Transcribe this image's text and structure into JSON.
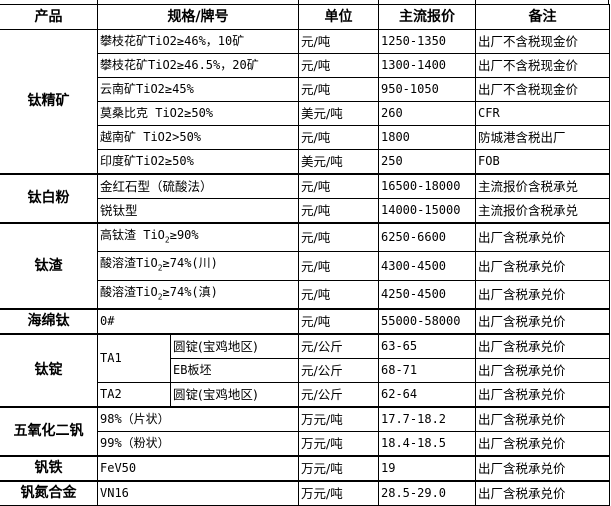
{
  "header": {
    "product": "产品",
    "spec": "规格/牌号",
    "unit": "单位",
    "price": "主流报价",
    "note": "备注"
  },
  "groups": [
    {
      "product": "钛精矿",
      "rows": [
        {
          "spec": "攀枝花矿TiO2≥46%，10矿",
          "unit": "元/吨",
          "price": "1250-1350",
          "note": "出厂不含税现金价"
        },
        {
          "spec": "攀枝花矿TiO2≥46.5%，20矿",
          "unit": "元/吨",
          "price": "1300-1400",
          "note": "出厂不含税现金价"
        },
        {
          "spec": "云南矿TiO2≥45%",
          "unit": "元/吨",
          "price": "950-1050",
          "note": "出厂不含税现金价"
        },
        {
          "spec": "莫桑比克 TiO2≥50%",
          "unit": "美元/吨",
          "price": "260",
          "note": "CFR"
        },
        {
          "spec": "越南矿 TiO2>50%",
          "unit": "元/吨",
          "price": "1800",
          "note": "防城港含税出厂"
        },
        {
          "spec": "印度矿TiO2≥50%",
          "unit": "美元/吨",
          "price": "250",
          "note": "FOB"
        }
      ]
    },
    {
      "product": "钛白粉",
      "rows": [
        {
          "spec": "金红石型（硫酸法）",
          "unit": "元/吨",
          "price": "16500-18000",
          "note": "主流报价含税承兑"
        },
        {
          "spec": "锐钛型",
          "unit": "元/吨",
          "price": "14000-15000",
          "note": "主流报价含税承兑"
        }
      ]
    },
    {
      "product": "钛渣",
      "rows": [
        {
          "spec_a": "高钛渣 TiO",
          "spec_sub": "2",
          "spec_b": "≥90%",
          "unit": "元/吨",
          "price": "6250-6600",
          "note": "出厂含税承兑价"
        },
        {
          "spec_a": "酸溶渣TiO",
          "spec_sub": "2",
          "spec_b": "≥74%(川)",
          "unit": "元/吨",
          "price": "4300-4500",
          "note": "出厂含税承兑价"
        },
        {
          "spec_a": "酸溶渣TiO",
          "spec_sub": "2",
          "spec_b": "≥74%(滇)",
          "unit": "元/吨",
          "price": "4250-4500",
          "note": "出厂含税承兑价"
        }
      ]
    },
    {
      "product": "海绵钛",
      "rows": [
        {
          "spec": "0#",
          "unit": "元/吨",
          "price": "55000-58000",
          "note": "出厂含税承兑价"
        }
      ]
    },
    {
      "product": "钛锭",
      "rows": [
        {
          "grade": "TA1",
          "spec": "圆锭(宝鸡地区)",
          "unit": "元/公斤",
          "price": "63-65",
          "note": "出厂含税承兑价"
        },
        {
          "spec": "EB板坯",
          "unit": "元/公斤",
          "price": "68-71",
          "note": "出厂含税承兑价"
        },
        {
          "grade": "TA2",
          "spec": "圆锭(宝鸡地区)",
          "unit": "元/公斤",
          "price": "62-64",
          "note": "出厂含税承兑价"
        }
      ]
    },
    {
      "product": "五氧化二钒",
      "rows": [
        {
          "spec": "98%（片状）",
          "unit": "万元/吨",
          "price": "17.7-18.2",
          "note": "出厂含税承兑价"
        },
        {
          "spec": "99%（粉状）",
          "unit": "万元/吨",
          "price": "18.4-18.5",
          "note": "出厂含税承兑价"
        }
      ]
    },
    {
      "product": "钒铁",
      "rows": [
        {
          "spec": "FeV50",
          "unit": "万元/吨",
          "price": "19",
          "note": "出厂含税承兑价"
        }
      ]
    },
    {
      "product": "钒氮合金",
      "rows": [
        {
          "spec": "VN16",
          "unit": "万元/吨",
          "price": "28.5-29.0",
          "note": "出厂含税承兑价"
        }
      ]
    }
  ]
}
